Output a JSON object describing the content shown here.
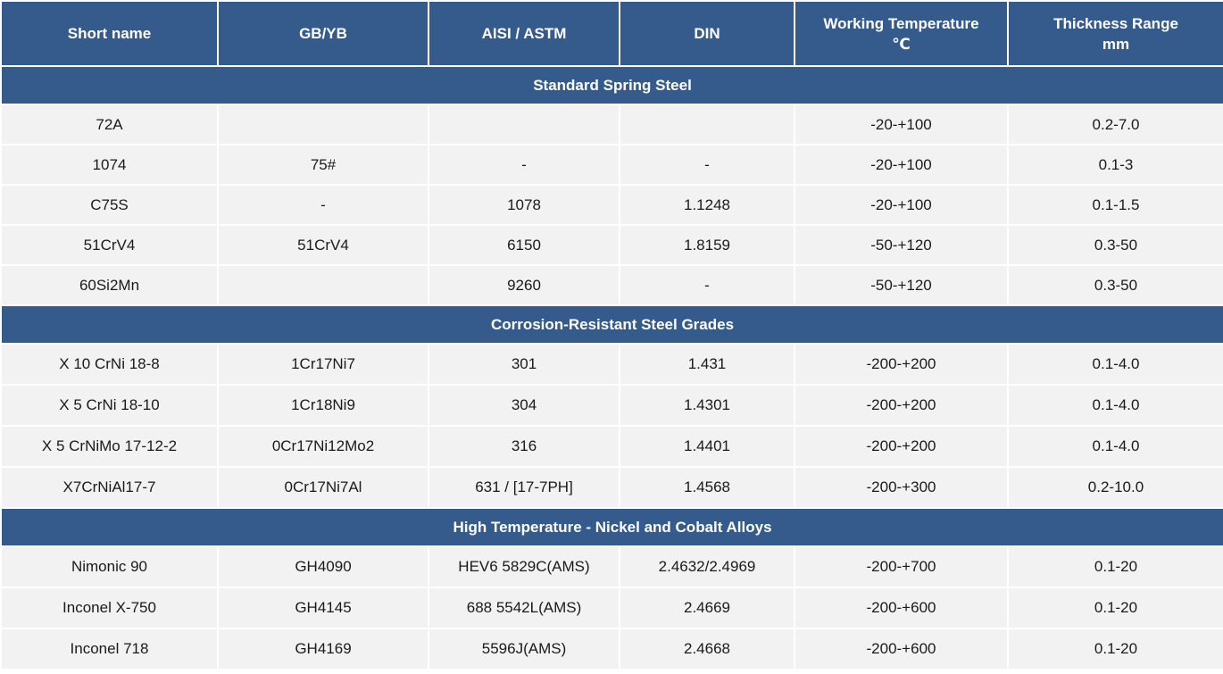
{
  "table": {
    "headers": [
      {
        "name": "Short name",
        "sub": ""
      },
      {
        "name": "GB/YB",
        "sub": ""
      },
      {
        "name": "AISI / ASTM",
        "sub": ""
      },
      {
        "name": "DIN",
        "sub": ""
      },
      {
        "name": "Working Temperature",
        "sub": "℃"
      },
      {
        "name": "Thickness Range",
        "sub": "mm"
      }
    ],
    "sections": [
      {
        "title": "Standard Spring Steel",
        "rows": [
          [
            "72A",
            "",
            "",
            "",
            "-20-+100",
            "0.2-7.0"
          ],
          [
            "1074",
            "75#",
            "-",
            "-",
            "-20-+100",
            "0.1-3"
          ],
          [
            "C75S",
            "-",
            "1078",
            "1.1248",
            "-20-+100",
            "0.1-1.5"
          ],
          [
            "51CrV4",
            "51CrV4",
            "6150",
            "1.8159",
            "-50-+120",
            "0.3-50"
          ],
          [
            "60Si2Mn",
            "",
            "9260",
            "-",
            "-50-+120",
            "0.3-50"
          ]
        ]
      },
      {
        "title": "Corrosion-Resistant Steel Grades",
        "rows": [
          [
            "X 10 CrNi 18-8",
            "1Cr17Ni7",
            "301",
            "1.431",
            "-200-+200",
            "0.1-4.0"
          ],
          [
            "X 5 CrNi 18-10",
            "1Cr18Ni9",
            "304",
            "1.4301",
            "-200-+200",
            "0.1-4.0"
          ],
          [
            "X 5 CrNiMo 17-12-2",
            "0Cr17Ni12Mo2",
            "316",
            "1.4401",
            "-200-+200",
            "0.1-4.0"
          ],
          [
            "X7CrNiAl17-7",
            "0Cr17Ni7Al",
            "631  /  [17-7PH]",
            "1.4568",
            "-200-+300",
            "0.2-10.0"
          ]
        ]
      },
      {
        "title": "High Temperature - Nickel and Cobalt Alloys",
        "rows": [
          [
            "Nimonic 90",
            "GH4090",
            "HEV6 5829C(AMS)",
            "2.4632/2.4969",
            "-200-+700",
            "0.1-20"
          ],
          [
            "Inconel X-750",
            "GH4145",
            "688 5542L(AMS)",
            "2.4669",
            "-200-+600",
            "0.1-20"
          ],
          [
            "Inconel 718",
            "GH4169",
            "5596J(AMS)",
            "2.4668",
            "-200-+600",
            "0.1-20"
          ]
        ]
      }
    ]
  },
  "colors": {
    "header_bg": "#345b8c",
    "header_text": "#ffffff",
    "row_bg": "#f2f2f2",
    "grid_line": "#ffffff"
  }
}
